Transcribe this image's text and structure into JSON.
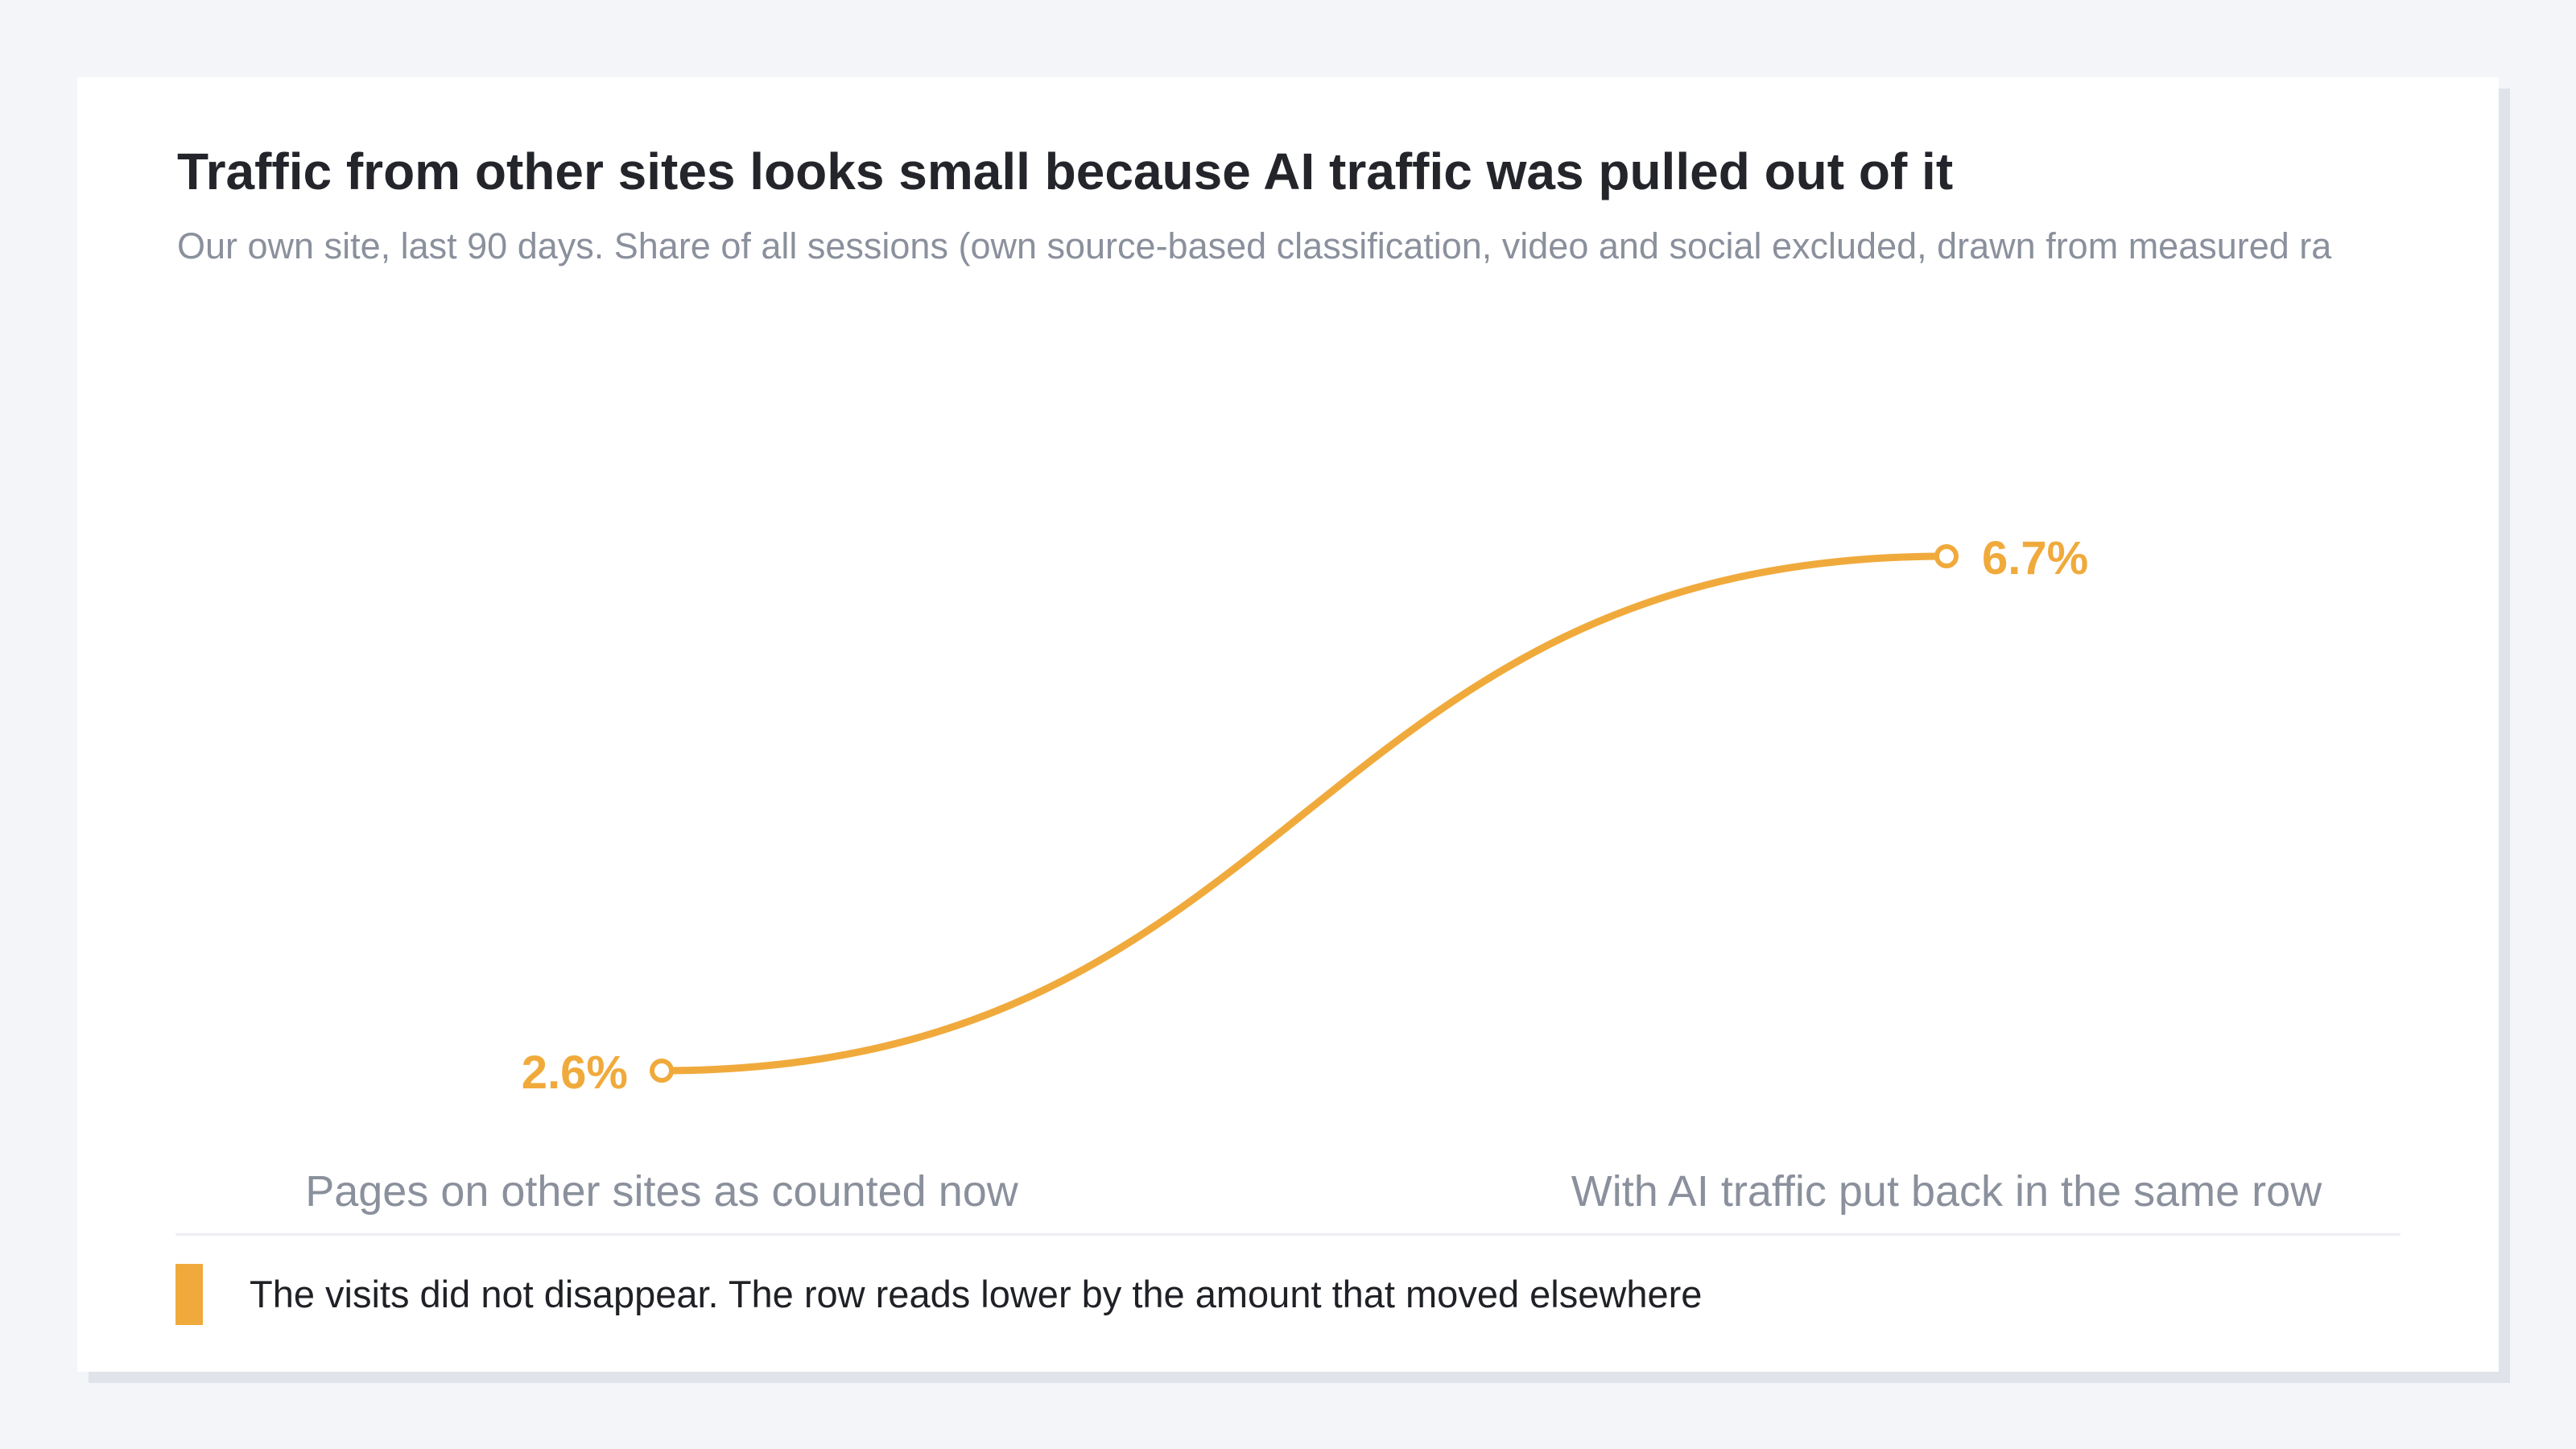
{
  "colors": {
    "accent": "#f0aa3c",
    "title": "#23252b",
    "muted": "#8a909c",
    "background": "#f4f5f9",
    "card": "#ffffff"
  },
  "header": {
    "title": "Traffic from other sites looks small because AI traffic was pulled out of it",
    "subtitle": "Our own site, last 90 days. Share of all sessions (own source-based classification, video and social excluded, drawn from measured ra"
  },
  "legend": {
    "text": "The visits did not disappear. The row reads lower by the amount that moved elsewhere"
  },
  "chart_data": {
    "type": "line",
    "title": "Traffic from other sites looks small because AI traffic was pulled out of it",
    "subtitle": "Our own site, last 90 days. Share of all sessions (own source-based classification, video and social excluded, drawn from measured ra",
    "categories": [
      "Pages on other sites as counted now",
      "With AI traffic put back in the same row"
    ],
    "series": [
      {
        "values": [
          2.6,
          6.7
        ],
        "labels": [
          "2.6%",
          "6.7%"
        ],
        "color": "#f0aa3c"
      }
    ],
    "unit": "%",
    "grid": false,
    "smooth": true,
    "markers": "hollow-circle",
    "legend_placement": "bottom-left"
  }
}
